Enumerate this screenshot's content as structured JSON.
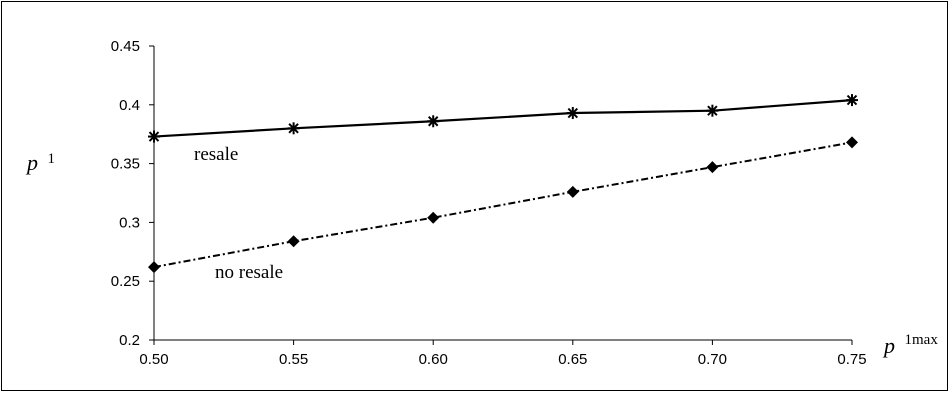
{
  "chart_data": {
    "type": "line",
    "x": [
      0.5,
      0.55,
      0.6,
      0.65,
      0.7,
      0.75
    ],
    "x_tick_labels": [
      "0.50",
      "0.55",
      "0.60",
      "0.65",
      "0.70",
      "0.75"
    ],
    "y_tick_labels": [
      "0.2",
      "0.25",
      "0.3",
      "0.35",
      "0.4",
      "0.45"
    ],
    "y_ticks": [
      0.2,
      0.25,
      0.3,
      0.35,
      0.4,
      0.45
    ],
    "xlim": [
      0.5,
      0.75
    ],
    "ylim": [
      0.2,
      0.45
    ],
    "series": [
      {
        "name": "resale",
        "values": [
          0.373,
          0.38,
          0.386,
          0.393,
          0.395,
          0.404
        ],
        "marker": "asterisk",
        "line_style": "solid",
        "color": "#000000"
      },
      {
        "name": "no resale",
        "values": [
          0.262,
          0.284,
          0.304,
          0.326,
          0.347,
          0.368
        ],
        "marker": "diamond",
        "line_style": "dash-dot",
        "color": "#000000"
      }
    ],
    "ylabel": {
      "main": "p",
      "sup": "1"
    },
    "xlabel": {
      "main": "p",
      "sup": "1max"
    },
    "grid": false
  }
}
